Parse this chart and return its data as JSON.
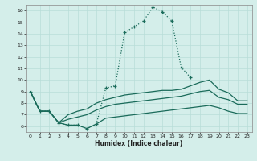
{
  "xlabel": "Humidex (Indice chaleur)",
  "bg_color": "#d4eeea",
  "grid_color": "#b8ddd8",
  "line_color": "#1a6b5a",
  "xlim": [
    -0.5,
    23.5
  ],
  "ylim": [
    5.5,
    16.5
  ],
  "xticks": [
    0,
    1,
    2,
    3,
    4,
    5,
    6,
    7,
    8,
    9,
    10,
    11,
    12,
    13,
    14,
    15,
    16,
    17,
    18,
    19,
    20,
    21,
    22,
    23
  ],
  "yticks": [
    6,
    7,
    8,
    9,
    10,
    11,
    12,
    13,
    14,
    15,
    16
  ],
  "line1_x": [
    0,
    1,
    2,
    3,
    4,
    5,
    6,
    7,
    8,
    9,
    10,
    11,
    12,
    13,
    14,
    15,
    16,
    17
  ],
  "line1_y": [
    9.0,
    7.3,
    7.3,
    6.3,
    6.1,
    6.1,
    5.8,
    6.2,
    9.3,
    9.5,
    14.1,
    14.6,
    15.1,
    16.3,
    15.9,
    15.1,
    11.1,
    10.2
  ],
  "line2_x": [
    0,
    1,
    2,
    3,
    4,
    5,
    6,
    7,
    8,
    9,
    10,
    11,
    12,
    13,
    14,
    15,
    16,
    17,
    18,
    19,
    20,
    21,
    22,
    23
  ],
  "line2_y": [
    9.0,
    7.3,
    7.3,
    6.3,
    7.0,
    7.3,
    7.5,
    8.0,
    8.3,
    8.5,
    8.7,
    8.8,
    8.9,
    9.0,
    9.1,
    9.1,
    9.2,
    9.5,
    9.8,
    10.0,
    9.2,
    8.9,
    8.2,
    8.2
  ],
  "line3_x": [
    0,
    1,
    2,
    3,
    4,
    5,
    6,
    7,
    8,
    9,
    10,
    11,
    12,
    13,
    14,
    15,
    16,
    17,
    18,
    19,
    20,
    21,
    22,
    23
  ],
  "line3_y": [
    9.0,
    7.3,
    7.3,
    6.3,
    6.6,
    6.8,
    7.0,
    7.4,
    7.7,
    7.9,
    8.0,
    8.1,
    8.2,
    8.3,
    8.4,
    8.5,
    8.6,
    8.8,
    9.0,
    9.1,
    8.5,
    8.3,
    7.9,
    7.9
  ],
  "line4_x": [
    0,
    1,
    2,
    3,
    4,
    5,
    6,
    7,
    8,
    9,
    10,
    11,
    12,
    13,
    14,
    15,
    16,
    17,
    18,
    19,
    20,
    21,
    22,
    23
  ],
  "line4_y": [
    9.0,
    7.3,
    7.3,
    6.3,
    6.1,
    6.1,
    5.8,
    6.2,
    6.7,
    6.8,
    6.9,
    7.0,
    7.1,
    7.2,
    7.3,
    7.4,
    7.5,
    7.6,
    7.7,
    7.8,
    7.6,
    7.3,
    7.1,
    7.1
  ]
}
